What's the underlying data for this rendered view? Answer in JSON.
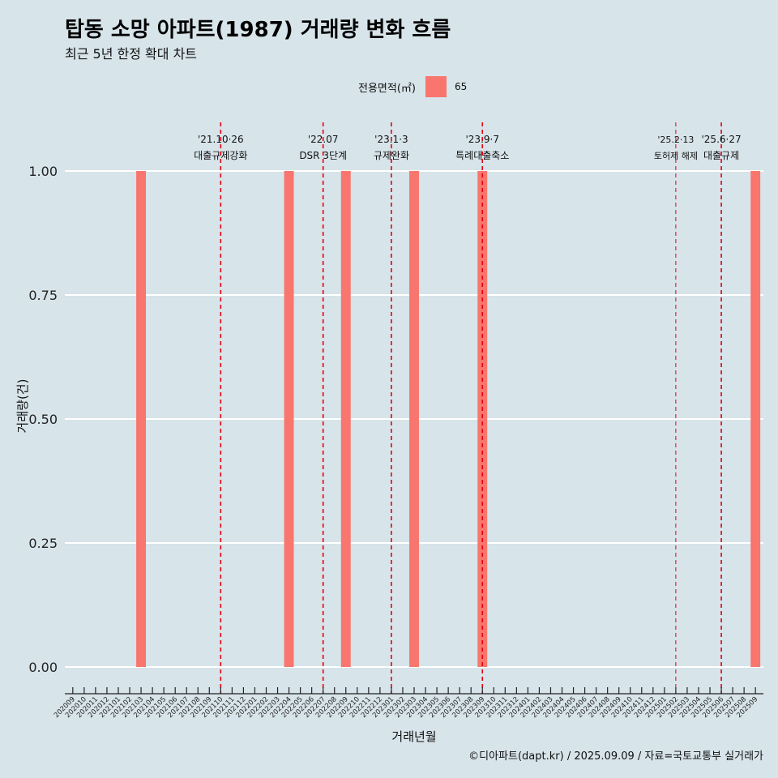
{
  "title": "탑동 소망 아파트(1987) 거래량 변화 흐름",
  "subtitle": "최근 5년 한정 확대 차트",
  "caption": "©디아파트(dapt.kr) / 2025.09.09 / 자료=국토교통부 실거래가",
  "colors": {
    "bar": "#f8766d",
    "background": "#d7e4ea",
    "event_line": "#e3000f"
  },
  "chart_data": {
    "type": "bar",
    "xlabel": "거래년월",
    "ylabel": "거래량(건)",
    "ylim": [
      0,
      1
    ],
    "yticks": [
      "0.00",
      "0.25",
      "0.50",
      "0.75",
      "1.00"
    ],
    "legend": {
      "title": "전용면적(㎡)",
      "position": "top",
      "items": [
        "65"
      ]
    },
    "categories": [
      "202009",
      "202010",
      "202011",
      "202012",
      "202101",
      "202102",
      "202103",
      "202104",
      "202105",
      "202106",
      "202107",
      "202108",
      "202109",
      "202110",
      "202111",
      "202112",
      "202201",
      "202202",
      "202203",
      "202204",
      "202205",
      "202206",
      "202207",
      "202208",
      "202209",
      "202210",
      "202211",
      "202212",
      "202301",
      "202302",
      "202303",
      "202304",
      "202305",
      "202306",
      "202307",
      "202308",
      "202309",
      "202310",
      "202311",
      "202312",
      "202401",
      "202402",
      "202403",
      "202404",
      "202405",
      "202406",
      "202407",
      "202408",
      "202409",
      "202410",
      "202411",
      "202412",
      "202501",
      "202502",
      "202503",
      "202504",
      "202505",
      "202506",
      "202507",
      "202508",
      "202509"
    ],
    "series": [
      {
        "name": "65",
        "points": [
          {
            "x": "202103",
            "y": 1
          },
          {
            "x": "202204",
            "y": 1
          },
          {
            "x": "202209",
            "y": 1
          },
          {
            "x": "202303",
            "y": 1
          },
          {
            "x": "202309",
            "y": 1
          },
          {
            "x": "202509",
            "y": 1
          }
        ]
      }
    ],
    "events": [
      {
        "month": "202110",
        "date": "'21.10·26",
        "label": "대출규제강화"
      },
      {
        "month": "202207",
        "date": "'22.07",
        "label": "DSR 3단계"
      },
      {
        "month": "202301",
        "date": "'23.1·3",
        "label": "규제완화"
      },
      {
        "month": "202309",
        "date": "'23.9·7",
        "label": "특례대출축소"
      },
      {
        "month": "202502",
        "date": "'25.2·13",
        "label": "토허제 해제"
      },
      {
        "month": "202506",
        "date": "'25.6·27",
        "label": "대출규제"
      }
    ]
  }
}
